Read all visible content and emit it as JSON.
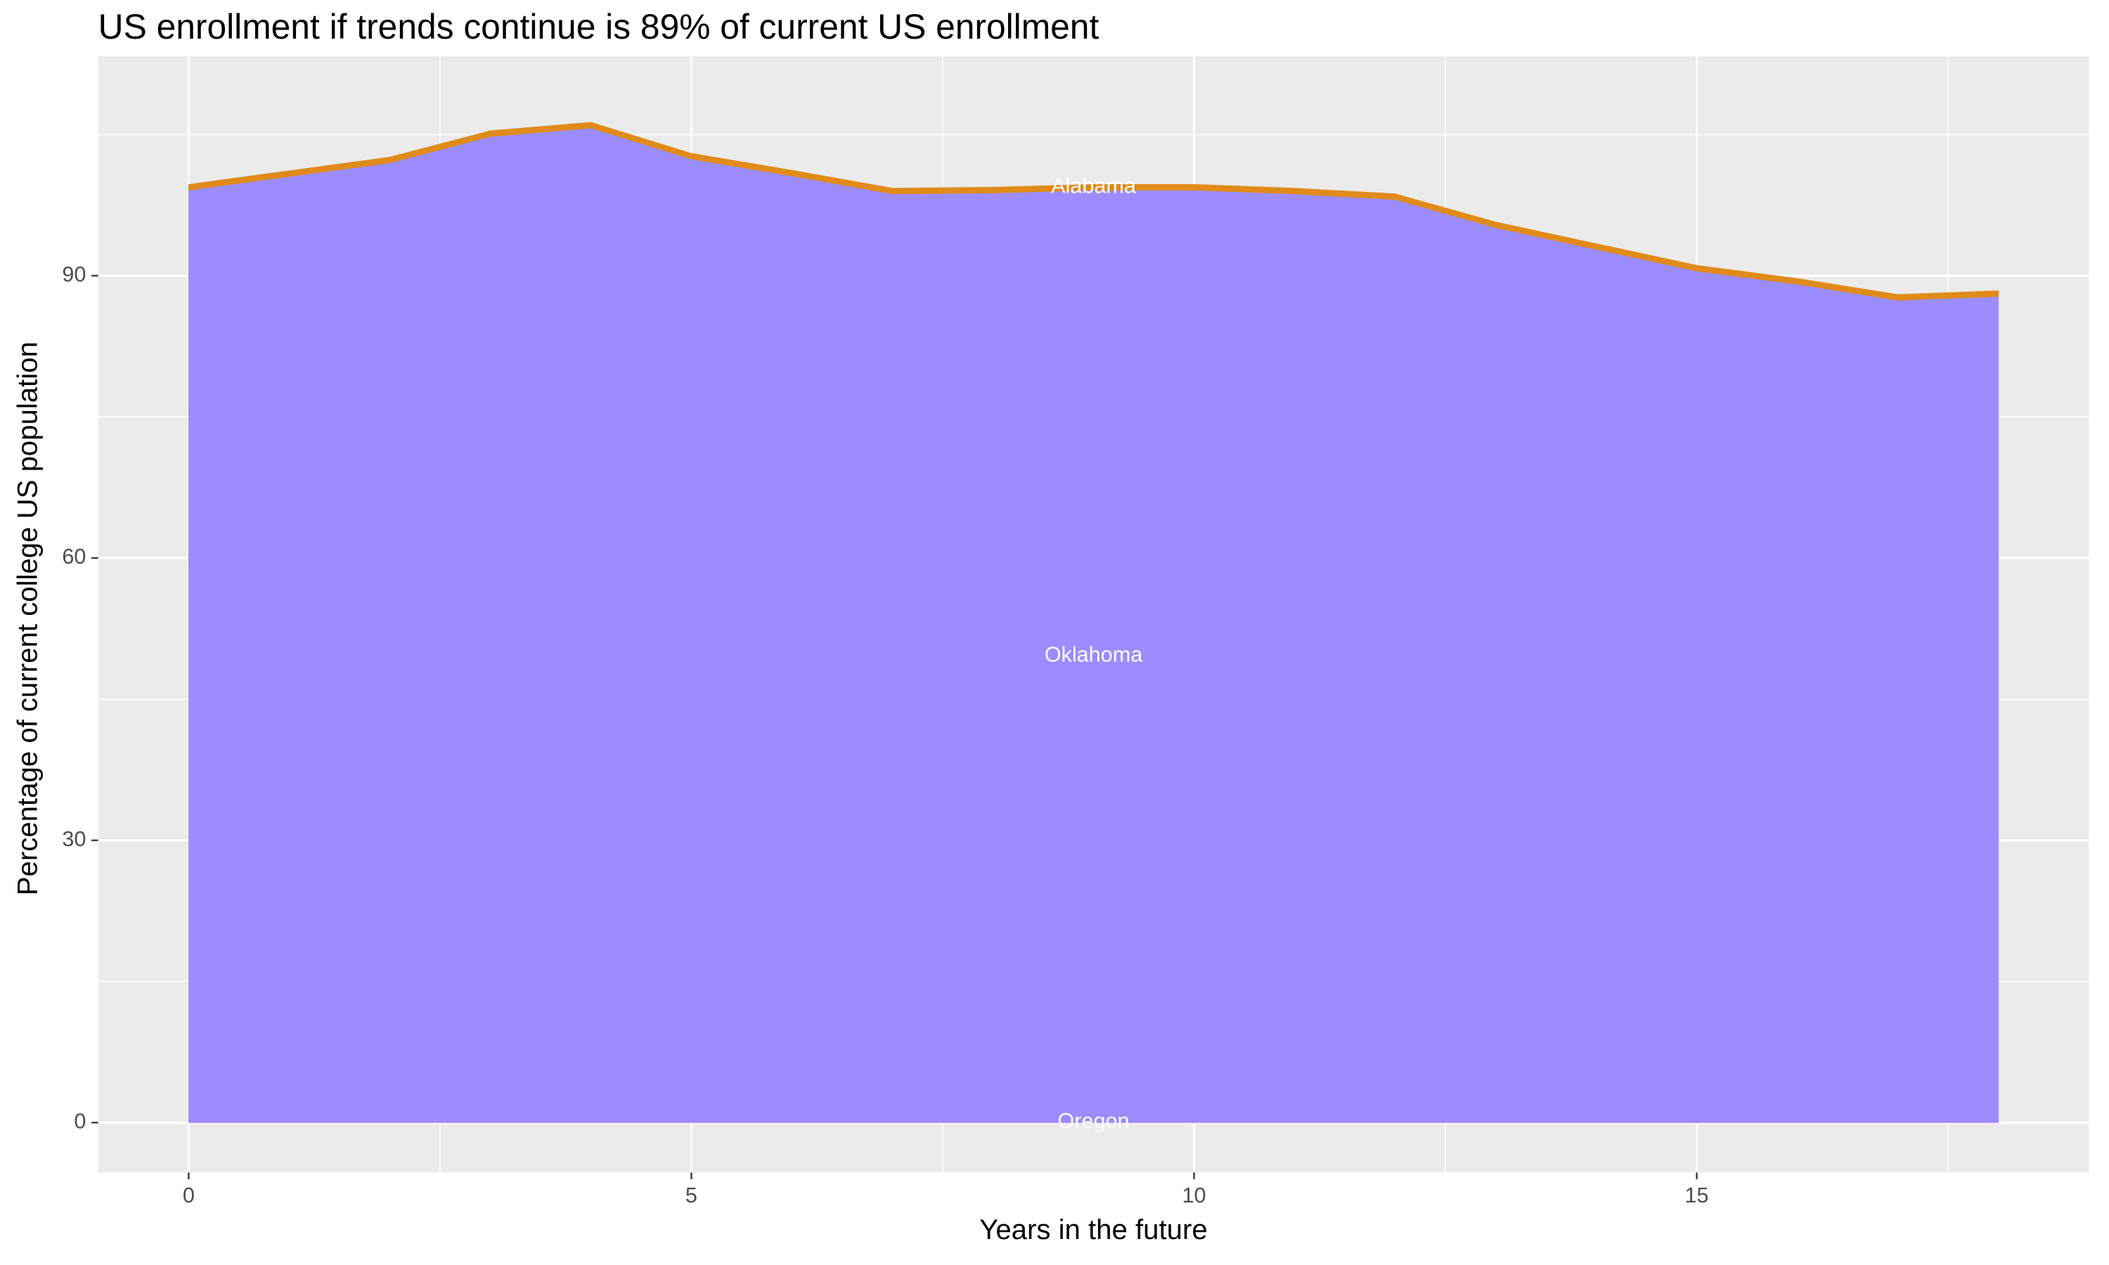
{
  "chart_data": {
    "type": "stacked-area",
    "title": "US enrollment if trends continue is 89% of current US enrollment",
    "x_label": "Years in the future",
    "y_label": "Percentage of current college US population",
    "x": [
      0,
      1,
      2,
      3,
      4,
      5,
      6,
      7,
      8,
      9,
      10,
      11,
      12,
      13,
      14,
      15,
      16,
      17,
      18
    ],
    "series": [
      {
        "name": "Oregon",
        "color": "#c77cff",
        "values": [
          0.05,
          0.05,
          0.05,
          0.05,
          0.05,
          0.05,
          0.05,
          0.05,
          0.05,
          0.05,
          0.05,
          0.05,
          0.05,
          0.05,
          0.05,
          0.05,
          0.05,
          0.05,
          0.05
        ]
      },
      {
        "name": "Oklahoma",
        "color": "#9b8cff",
        "values": [
          99.05,
          100.5,
          101.95,
          104.75,
          105.65,
          102.35,
          100.55,
          98.65,
          98.75,
          99.05,
          99.05,
          98.65,
          98.05,
          95.05,
          92.75,
          90.45,
          89.05,
          87.35,
          87.75
        ]
      },
      {
        "name": "Alabama",
        "color": "#e08b1a",
        "values": [
          0.6,
          0.6,
          0.6,
          0.6,
          0.6,
          0.6,
          0.6,
          0.6,
          0.6,
          0.6,
          0.6,
          0.6,
          0.6,
          0.6,
          0.6,
          0.6,
          0.6,
          0.6,
          0.6
        ]
      }
    ],
    "xlim": [
      -0.9,
      18.9
    ],
    "xticks": [
      0,
      5,
      10,
      15
    ],
    "ylim": [
      -5.3,
      113.3
    ],
    "yticks": [
      0,
      30,
      60,
      90
    ],
    "grid": true
  }
}
